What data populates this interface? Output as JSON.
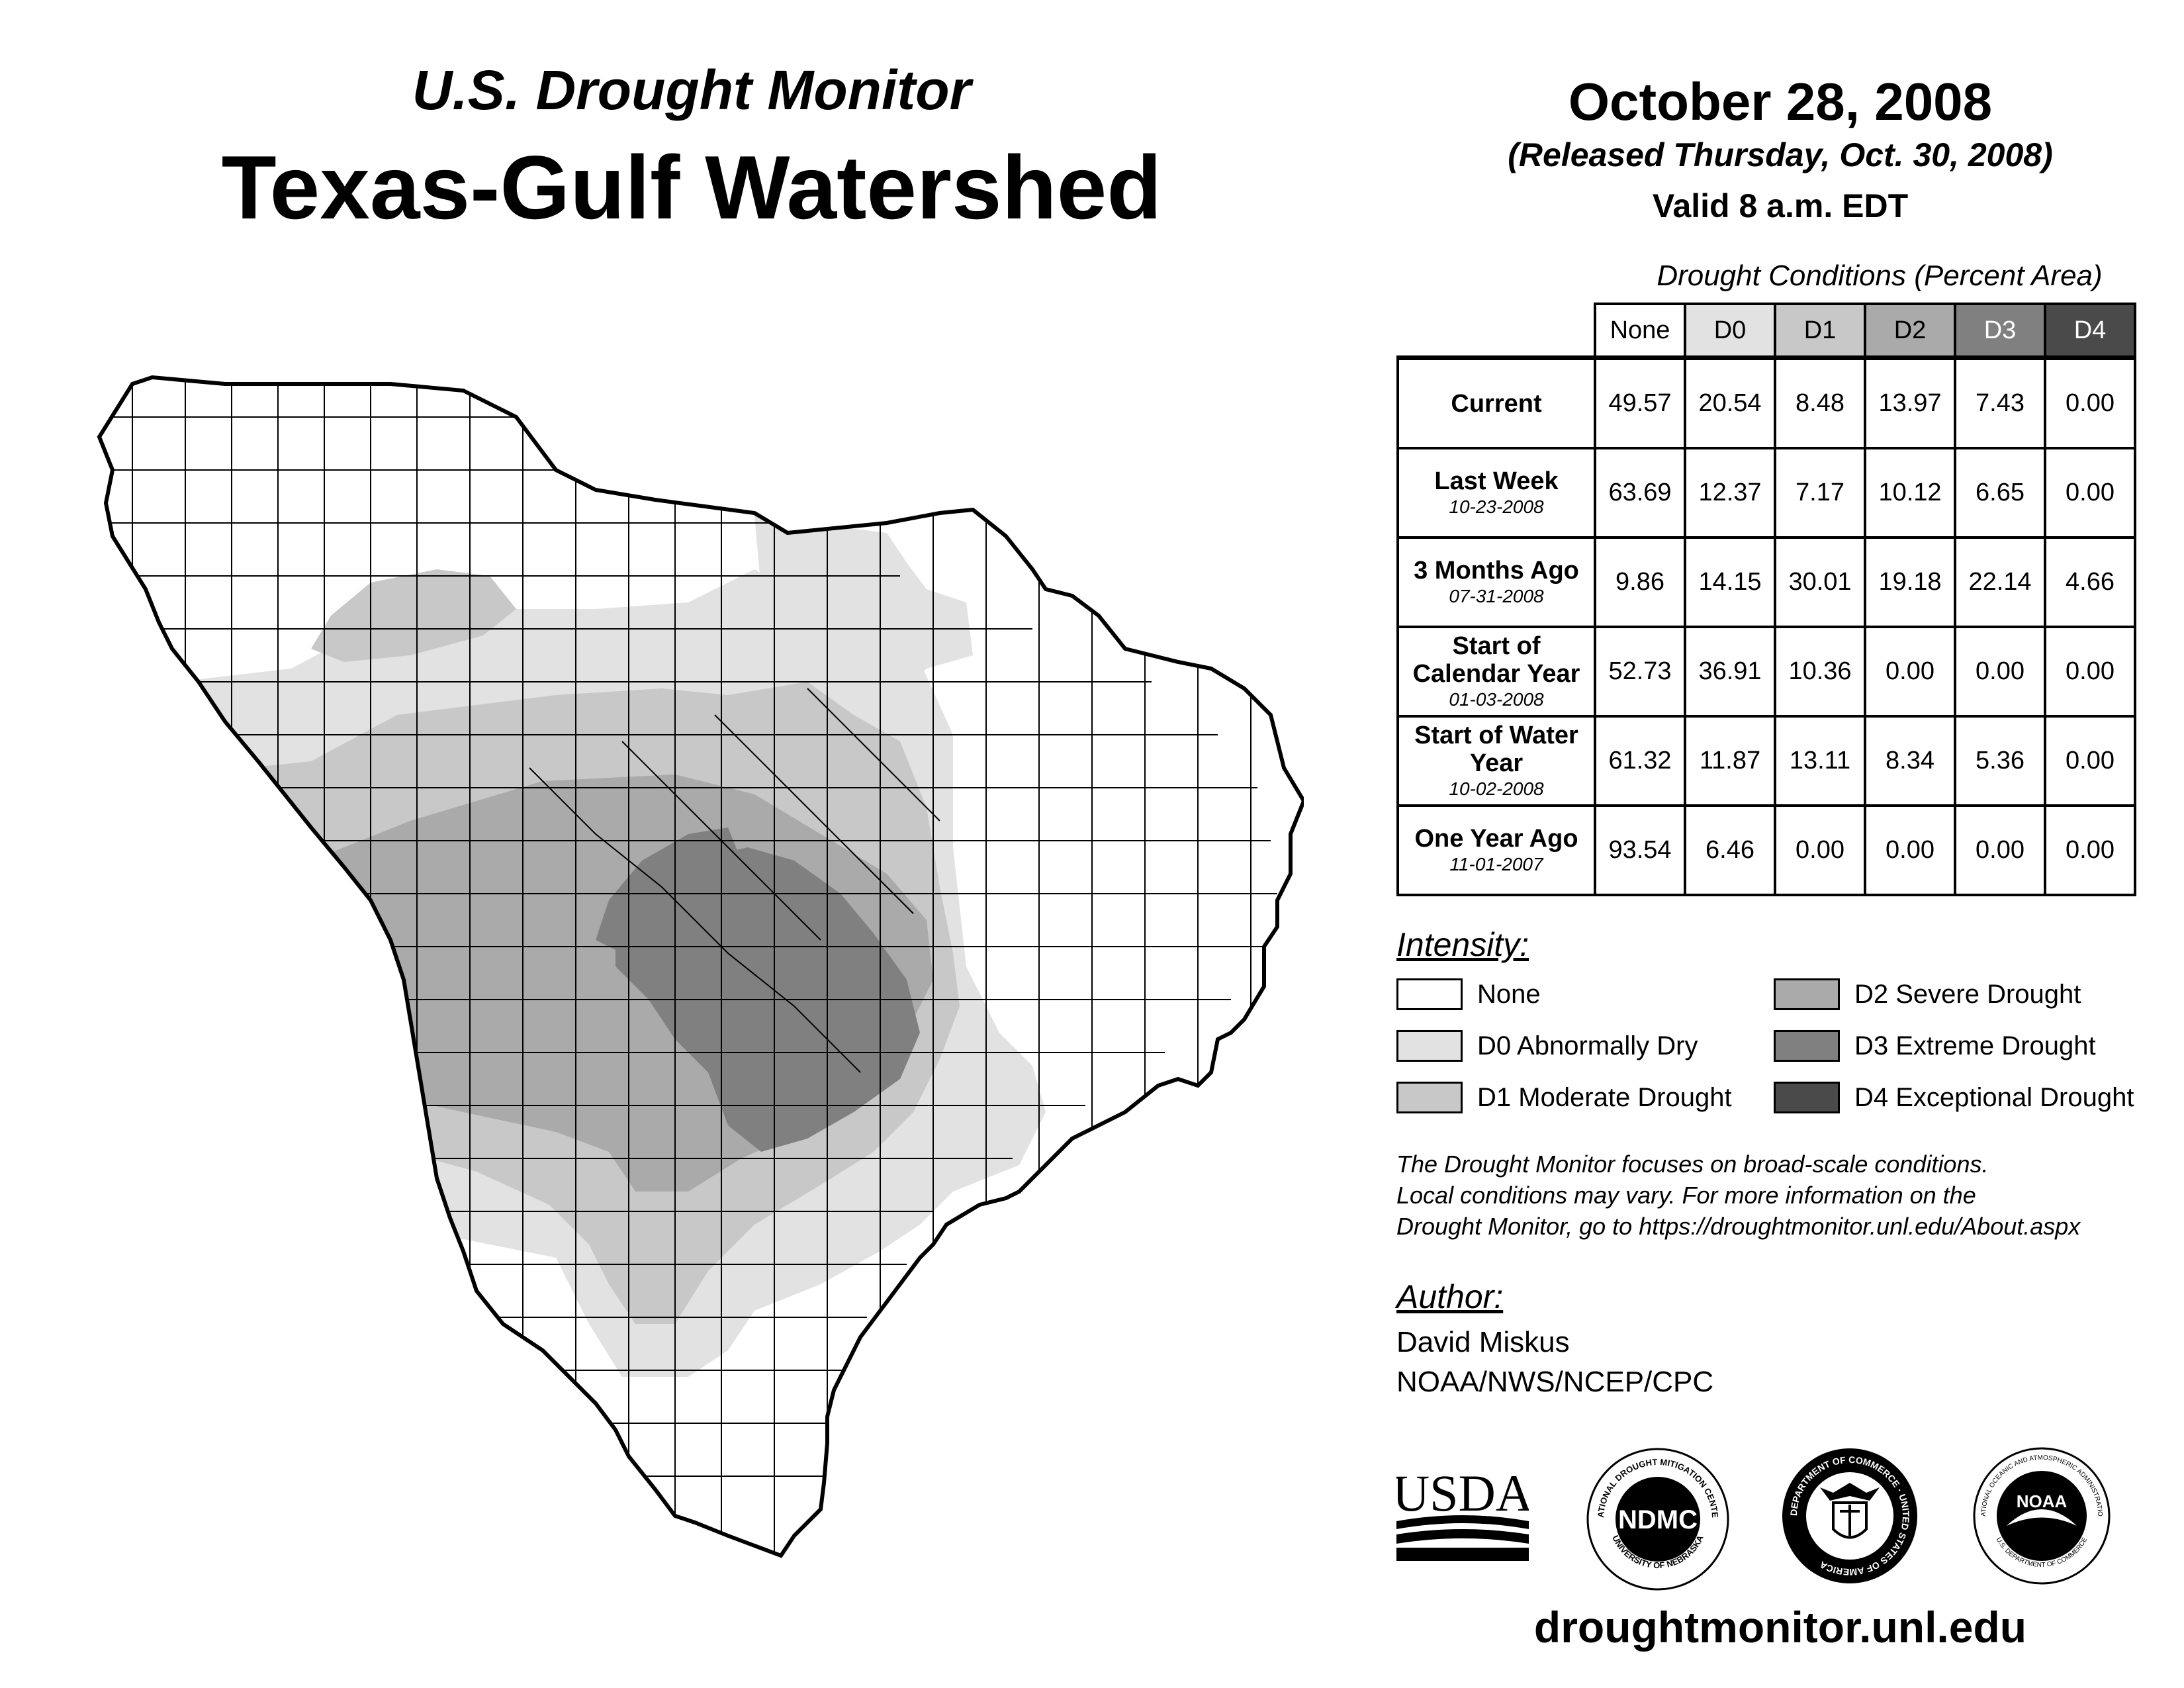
{
  "header": {
    "subtitle": "U.S. Drought Monitor",
    "title": "Texas-Gulf Watershed",
    "date": "October 28, 2008",
    "released": "(Released Thursday, Oct. 30, 2008)",
    "valid": "Valid 8 a.m. EDT"
  },
  "table": {
    "title": "Drought Conditions (Percent Area)",
    "columns": [
      "None",
      "D0",
      "D1",
      "D2",
      "D3",
      "D4"
    ],
    "rows": [
      {
        "label": "Current",
        "date": "",
        "values": [
          "49.57",
          "20.54",
          "8.48",
          "13.97",
          "7.43",
          "0.00"
        ]
      },
      {
        "label": "Last Week",
        "date": "10-23-2008",
        "values": [
          "63.69",
          "12.37",
          "7.17",
          "10.12",
          "6.65",
          "0.00"
        ]
      },
      {
        "label": "3 Months Ago",
        "date": "07-31-2008",
        "values": [
          "9.86",
          "14.15",
          "30.01",
          "19.18",
          "22.14",
          "4.66"
        ]
      },
      {
        "label": "Start of Calendar Year",
        "date": "01-03-2008",
        "values": [
          "52.73",
          "36.91",
          "10.36",
          "0.00",
          "0.00",
          "0.00"
        ]
      },
      {
        "label": "Start of Water Year",
        "date": "10-02-2008",
        "values": [
          "61.32",
          "11.87",
          "13.11",
          "8.34",
          "5.36",
          "0.00"
        ]
      },
      {
        "label": "One Year Ago",
        "date": "11-01-2007",
        "values": [
          "93.54",
          "6.46",
          "0.00",
          "0.00",
          "0.00",
          "0.00"
        ]
      }
    ]
  },
  "legend": {
    "title": "Intensity:",
    "items": [
      {
        "label": "None",
        "color": "#ffffff"
      },
      {
        "label": "D0 Abnormally Dry",
        "color": "#e2e2e2"
      },
      {
        "label": "D1 Moderate Drought",
        "color": "#c8c8c8"
      },
      {
        "label": "D2 Severe Drought",
        "color": "#aaaaaa"
      },
      {
        "label": "D3 Extreme Drought",
        "color": "#808080"
      },
      {
        "label": "D4 Exceptional Drought",
        "color": "#4a4a4a"
      }
    ]
  },
  "note": {
    "line1": "The Drought Monitor focuses on broad-scale conditions.",
    "line2": "Local conditions may vary. For more information on the",
    "line3": "Drought Monitor, go to https://droughtmonitor.unl.edu/About.aspx"
  },
  "author": {
    "title": "Author:",
    "name": "David Miskus",
    "org": "NOAA/NWS/NCEP/CPC"
  },
  "logos": {
    "usda": "USDA",
    "ndmc": "NDMC",
    "ndmc_ring_top": "NATIONAL DROUGHT MITIGATION CENTER",
    "ndmc_ring_bottom": "UNIVERSITY OF NEBRASKA",
    "doc_ring": "DEPARTMENT OF COMMERCE · UNITED STATES OF AMERICA",
    "noaa": "NOAA",
    "noaa_ring_top": "NATIONAL OCEANIC AND ATMOSPHERIC ADMINISTRATION",
    "noaa_ring_bottom": "U.S. DEPARTMENT OF COMMERCE"
  },
  "footer": {
    "url": "droughtmonitor.unl.edu"
  },
  "header_colors": [
    "#ffffff",
    "#e2e2e2",
    "#c8c8c8",
    "#aaaaaa",
    "#808080",
    "#4a4a4a"
  ]
}
